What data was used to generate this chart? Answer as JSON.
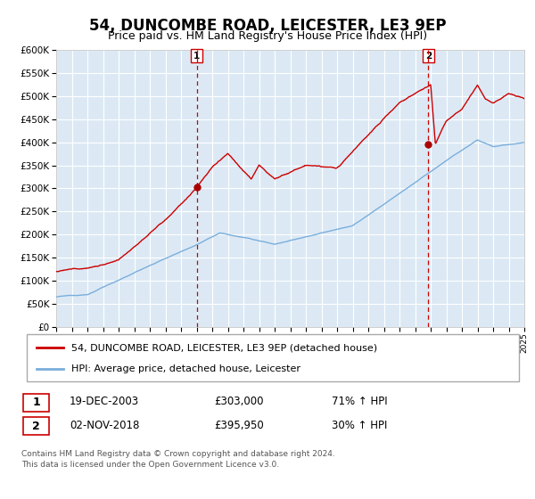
{
  "title": "54, DUNCOMBE ROAD, LEICESTER, LE3 9EP",
  "subtitle": "Price paid vs. HM Land Registry's House Price Index (HPI)",
  "title_fontsize": 12,
  "subtitle_fontsize": 10,
  "bg_color": "#dce9f5",
  "red_line_color": "#cc0000",
  "blue_line_color": "#7aaedb",
  "marker_color": "#aa0000",
  "dashed_line_color": "#cc0000",
  "grid_color": "#ffffff",
  "ylim": [
    0,
    600000
  ],
  "yticks": [
    0,
    50000,
    100000,
    150000,
    200000,
    250000,
    300000,
    350000,
    400000,
    450000,
    500000,
    550000,
    600000
  ],
  "sale1_date": 2004.0,
  "sale1_price": 303000,
  "sale1_label": "1",
  "sale1_date_str": "19-DEC-2003",
  "sale1_price_str": "£303,000",
  "sale1_hpi_str": "71% ↑ HPI",
  "sale2_date": 2018.85,
  "sale2_price": 395950,
  "sale2_label": "2",
  "sale2_date_str": "02-NOV-2018",
  "sale2_price_str": "£395,950",
  "sale2_hpi_str": "30% ↑ HPI",
  "legend_label_red": "54, DUNCOMBE ROAD, LEICESTER, LE3 9EP (detached house)",
  "legend_label_blue": "HPI: Average price, detached house, Leicester",
  "footer": "Contains HM Land Registry data © Crown copyright and database right 2024.\nThis data is licensed under the Open Government Licence v3.0."
}
